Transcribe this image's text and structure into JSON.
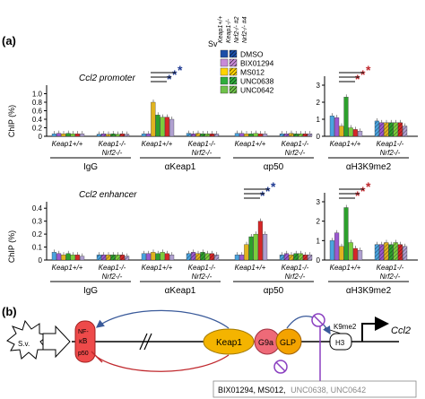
{
  "panel_a": "(a)",
  "panel_b": "(b)",
  "legend": {
    "sv": "Sv",
    "headers": [
      "Keap1+/+",
      "Keap1-/-",
      "Nrf2-/- #2",
      "Nrf2-/- #4"
    ],
    "items": [
      {
        "label": "DMSO",
        "color": "#1c4fa8"
      },
      {
        "label": "BIX01294",
        "color": "#c88ad8"
      },
      {
        "label": "MS012",
        "color": "#ffd400"
      },
      {
        "label": "UNC0638",
        "color": "#2fae3c"
      },
      {
        "label": "UNC0642",
        "color": "#6fc24a"
      }
    ]
  },
  "series_colors": [
    "#4aa3df",
    "#9b59d0",
    "#e0b31f",
    "#2ca02c",
    "#7ccd3c",
    "#d62728",
    "#b0a0d0"
  ],
  "groups": {
    "keap_wt": "Keap1+/+",
    "keap_ko": "Keap1-/-",
    "nrf2_ko": "Nrf2-/-",
    "antibodies": [
      "IgG",
      "αKeap1",
      "αp50",
      "αH3K9me2"
    ]
  },
  "chart_data": [
    {
      "type": "bar",
      "title": "Ccl2 promoter",
      "ylabel": "ChIP (%)",
      "ylim": [
        0,
        1.2
      ],
      "yticks": [
        "0",
        "0.2",
        "0.4",
        "0.6",
        "0.8",
        "1.0"
      ],
      "inset_ylim": [
        0,
        3
      ],
      "inset_yticks": [
        "0",
        "1",
        "2",
        "3"
      ],
      "significance": [
        {
          "panel": "αKeap1",
          "stars": 3,
          "color": "#1f3a93"
        },
        {
          "panel": "αH3K9me2",
          "stars": 3,
          "color": "#c0282d"
        }
      ],
      "panels": [
        {
          "antibody": "IgG",
          "wt": [
            0.06,
            0.07,
            0.06,
            0.07,
            0.06,
            0.06,
            0.06
          ],
          "ko": [
            0.05,
            0.06,
            0.05,
            0.06,
            0.05,
            0.06,
            0.05
          ]
        },
        {
          "antibody": "αKeap1",
          "wt": [
            0.06,
            0.06,
            0.8,
            0.5,
            0.45,
            0.45,
            0.4
          ],
          "ko": [
            0.07,
            0.06,
            0.07,
            0.06,
            0.06,
            0.06,
            0.06
          ]
        },
        {
          "antibody": "αp50",
          "wt": [
            0.07,
            0.07,
            0.06,
            0.06,
            0.07,
            0.06,
            0.06
          ],
          "ko": [
            0.06,
            0.06,
            0.07,
            0.06,
            0.06,
            0.06,
            0.06
          ]
        },
        {
          "antibody": "αH3K9me2",
          "wt": [
            1.2,
            1.1,
            0.6,
            2.3,
            0.5,
            0.4,
            0.3
          ],
          "ko": [
            0.9,
            0.8,
            0.8,
            0.8,
            0.8,
            0.8,
            0.6
          ]
        }
      ]
    },
    {
      "type": "bar",
      "title": "Ccl2 enhancer",
      "ylabel": "ChIP (%)",
      "ylim": [
        0,
        0.45
      ],
      "yticks": [
        "0",
        "0.1",
        "0.2",
        "0.3",
        "0.4"
      ],
      "inset_ylim": [
        0,
        3
      ],
      "inset_yticks": [
        "0",
        "1",
        "2",
        "3"
      ],
      "significance": [
        {
          "panel": "αp50",
          "stars": 3,
          "color": "#1f3a93"
        },
        {
          "panel": "αH3K9me2",
          "stars": 3,
          "color": "#c0282d"
        }
      ],
      "panels": [
        {
          "antibody": "IgG",
          "wt": [
            0.06,
            0.05,
            0.04,
            0.05,
            0.04,
            0.04,
            0.03
          ],
          "ko": [
            0.04,
            0.04,
            0.04,
            0.04,
            0.04,
            0.04,
            0.03
          ]
        },
        {
          "antibody": "αKeap1",
          "wt": [
            0.05,
            0.05,
            0.06,
            0.05,
            0.06,
            0.05,
            0.04
          ],
          "ko": [
            0.05,
            0.06,
            0.05,
            0.06,
            0.05,
            0.05,
            0.04
          ]
        },
        {
          "antibody": "αp50",
          "wt": [
            0.04,
            0.04,
            0.12,
            0.18,
            0.2,
            0.3,
            0.2
          ],
          "ko": [
            0.04,
            0.05,
            0.04,
            0.05,
            0.05,
            0.04,
            0.04
          ]
        },
        {
          "antibody": "αH3K9me2",
          "wt": [
            1.0,
            1.4,
            0.7,
            2.7,
            0.9,
            0.6,
            0.5
          ],
          "ko": [
            0.8,
            0.8,
            0.9,
            0.8,
            0.9,
            0.8,
            0.7
          ]
        }
      ]
    }
  ],
  "diagram": {
    "sv": "S.v.",
    "nfkb_top": "NF-",
    "nfkb_mid": "κB",
    "nfkb_bot": "p50",
    "keap1": "Keap1",
    "g9a": "G9a",
    "glp": "GLP",
    "k9me2": "K9me2",
    "h3": "H3",
    "gene": "Ccl2",
    "inhibitors_dark": "BIX01294, MS012,",
    "inhibitors_light": "UNC0638, UNC0642"
  }
}
